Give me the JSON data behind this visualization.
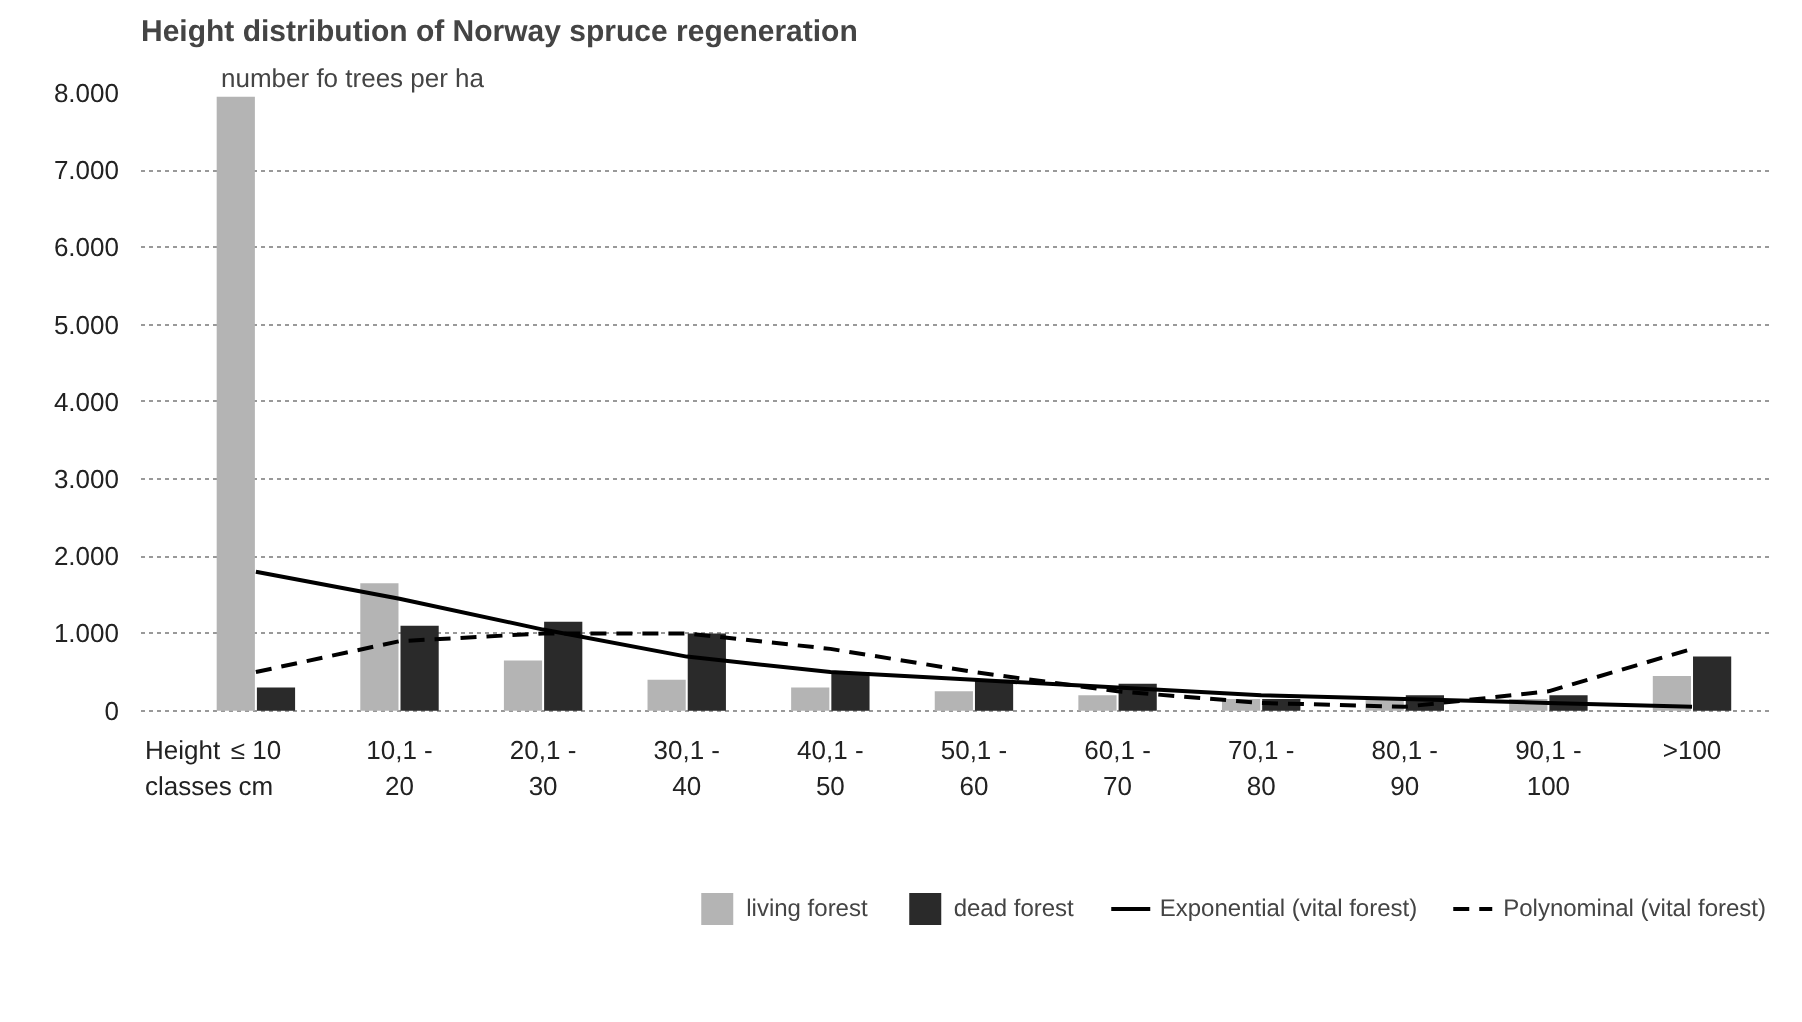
{
  "chart_data": {
    "type": "bar",
    "title": "Height distribution of Norway spruce regeneration",
    "xlabel": "Height\nclasses",
    "ylabel": "number fo trees per ha",
    "categories": [
      "≤ 10\ncm",
      "10,1 -\n20",
      "20,1 -\n30",
      "30,1 -\n40",
      "40,1 -\n50",
      "50,1 -\n60",
      "60,1 -\n70",
      "70,1 -\n80",
      "80,1 -\n90",
      "90,1 -\n100",
      ">100"
    ],
    "series": [
      {
        "name": "living forest",
        "color": "#b4b4b4",
        "values": [
          7950,
          1650,
          650,
          400,
          300,
          250,
          200,
          150,
          150,
          150,
          450
        ]
      },
      {
        "name": "dead forest",
        "color": "#2a2a2a",
        "values": [
          300,
          1100,
          1150,
          1000,
          500,
          400,
          350,
          150,
          200,
          200,
          700
        ]
      },
      {
        "name": "Exponential (vital forest)",
        "type": "line",
        "line_style": "solid",
        "color": "#000000",
        "values": [
          1800,
          1450,
          1050,
          700,
          500,
          400,
          300,
          200,
          150,
          100,
          50
        ]
      },
      {
        "name": "Polynominal (vital forest)",
        "type": "line",
        "line_style": "dashed",
        "color": "#000000",
        "values": [
          500,
          900,
          1000,
          1000,
          800,
          500,
          250,
          100,
          50,
          250,
          800
        ]
      }
    ],
    "ylim": [
      0,
      8000
    ],
    "yticks": [
      {
        "value": 0,
        "label": "0"
      },
      {
        "value": 1000,
        "label": "1.000"
      },
      {
        "value": 2000,
        "label": "2.000"
      },
      {
        "value": 3000,
        "label": "3.000"
      },
      {
        "value": 4000,
        "label": "4.000"
      },
      {
        "value": 5000,
        "label": "5.000"
      },
      {
        "value": 6000,
        "label": "6.000"
      },
      {
        "value": 7000,
        "label": "7.000"
      },
      {
        "value": 8000,
        "label": "8.000"
      }
    ],
    "grid": "y",
    "legend": "bottom"
  }
}
